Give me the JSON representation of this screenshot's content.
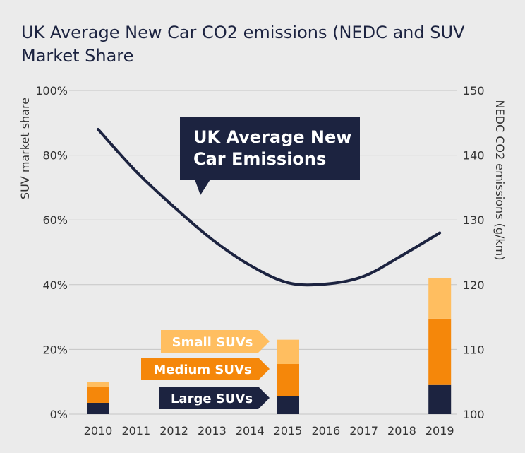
{
  "title": "UK Average New Car CO2 emissions (NEDC and SUV Market Share",
  "chart_data": {
    "type": "bar",
    "title": "UK Average New Car CO2 emissions (NEDC and SUV Market Share",
    "categories": [
      "2010",
      "2011",
      "2012",
      "2013",
      "2014",
      "2015",
      "2016",
      "2017",
      "2018",
      "2019"
    ],
    "y_left": {
      "label": "SUV market share",
      "ylim": [
        0,
        100
      ],
      "ticks": [
        "0%",
        "20%",
        "40%",
        "60%",
        "80%",
        "100%"
      ],
      "tick_values": [
        0,
        20,
        40,
        60,
        80,
        100
      ]
    },
    "y_right": {
      "label": "NEDC CO2 emissions (g/km)",
      "ylim": [
        100,
        150
      ],
      "ticks": [
        "100",
        "110",
        "120",
        "130",
        "140",
        "150"
      ],
      "tick_values": [
        100,
        110,
        120,
        130,
        140,
        150
      ]
    },
    "stacked": true,
    "series": [
      {
        "name": "Large SUVs",
        "color": "#1c2340",
        "axis": "left",
        "values": [
          3.5,
          null,
          null,
          null,
          null,
          5.5,
          null,
          null,
          null,
          9
        ]
      },
      {
        "name": "Medium SUVs",
        "color": "#f5870a",
        "axis": "left",
        "values": [
          5,
          null,
          null,
          null,
          null,
          10,
          null,
          null,
          null,
          20.5
        ]
      },
      {
        "name": "Small SUVs",
        "color": "#ffbe60",
        "axis": "left",
        "values": [
          1.5,
          null,
          null,
          null,
          null,
          7.5,
          null,
          null,
          null,
          12.5
        ]
      },
      {
        "name": "UK Average New Car Emissions",
        "type": "line",
        "color": "#1c2340",
        "axis": "right",
        "values": [
          144,
          137.5,
          132,
          127,
          123,
          120.3,
          120.1,
          121.3,
          124.5,
          128
        ]
      }
    ],
    "annotations": {
      "line_callout": "UK Average New Car Emissions",
      "line_callout_lines": [
        "UK Average New",
        "Car Emissions"
      ],
      "legend_labels": [
        "Small SUVs",
        "Medium SUVs",
        "Large SUVs"
      ]
    },
    "grid": true,
    "legend": "left of 2015 bar, arrow-shaped tags"
  }
}
